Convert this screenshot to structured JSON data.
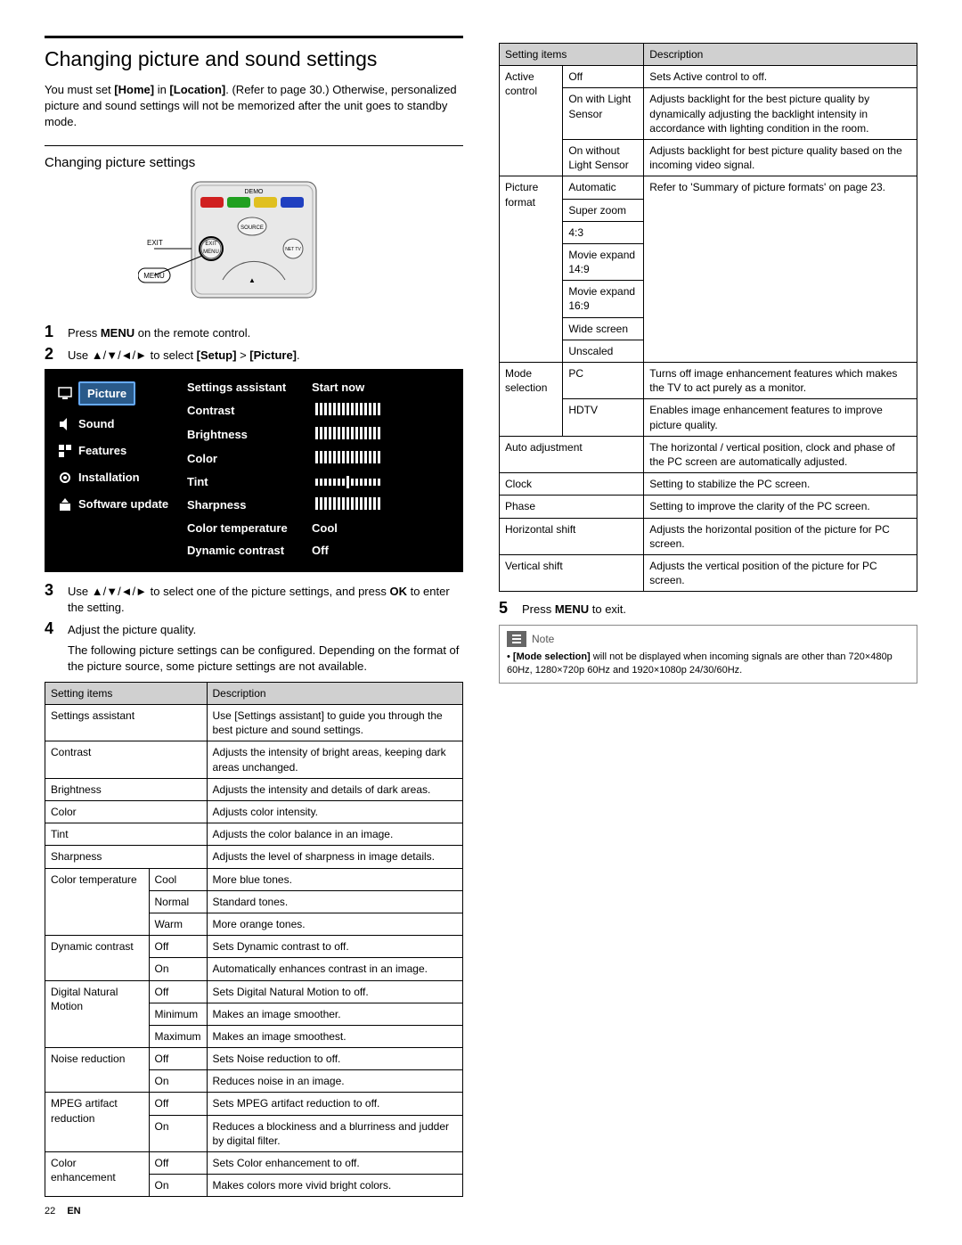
{
  "header": {
    "title": "Changing picture and sound settings",
    "intro_1": "You must set ",
    "intro_home": "[Home]",
    "intro_2": " in ",
    "intro_location": "[Location]",
    "intro_3": ". (Refer to page 30.) Otherwise, personalized picture and sound settings will not be memorized after the unit goes to standby mode.",
    "subhead": "Changing picture settings"
  },
  "remote": {
    "demo": "DEMO",
    "exit": "EXIT",
    "menu": "MENU",
    "source": "SOURCE",
    "nettv": "NET TV",
    "colors": {
      "red": "#d02020",
      "green": "#20a020",
      "yellow": "#e0c020",
      "blue": "#2040c0"
    }
  },
  "steps": {
    "s1_a": "Press ",
    "s1_b": "MENU",
    "s1_c": " on the remote control.",
    "s2_a": "Use ▲/▼/◄/► to select ",
    "s2_b": "[Setup]",
    "s2_c": " > ",
    "s2_d": "[Picture]",
    "s2_e": ".",
    "s3_a": "Use ▲/▼/◄/► to select one of the picture settings, and press ",
    "s3_b": "OK",
    "s3_c": " to enter the setting.",
    "s4": "Adjust the picture quality.",
    "s4_sub": "The following picture settings can be configured. Depending on the format of the picture source, some picture settings are not available.",
    "s5_a": "Press ",
    "s5_b": "MENU",
    "s5_c": " to exit."
  },
  "osd": {
    "left": [
      "Picture",
      "Sound",
      "Features",
      "Installation",
      "Software update"
    ],
    "rows": [
      {
        "label": "Settings assistant",
        "value": "Start now"
      },
      {
        "label": "Contrast",
        "value": "TICKS_FULL"
      },
      {
        "label": "Brightness",
        "value": "TICKS_FULL"
      },
      {
        "label": "Color",
        "value": "TICKS_FULL"
      },
      {
        "label": "Tint",
        "value": "TICKS_CENTER"
      },
      {
        "label": "Sharpness",
        "value": "TICKS_FULL"
      },
      {
        "label": "Color temperature",
        "value": "Cool"
      },
      {
        "label": "Dynamic contrast",
        "value": "Off"
      }
    ]
  },
  "table1": {
    "head": [
      "Setting items",
      "Description"
    ],
    "rows": [
      {
        "c1": "Settings assistant",
        "span": 2,
        "desc": "Use [Settings assistant] to guide you through the best picture and sound settings."
      },
      {
        "c1": "Contrast",
        "span": 2,
        "desc": "Adjusts the intensity of bright areas, keeping dark areas unchanged."
      },
      {
        "c1": "Brightness",
        "span": 2,
        "desc": "Adjusts the intensity and details of dark areas."
      },
      {
        "c1": "Color",
        "span": 2,
        "desc": "Adjusts color intensity."
      },
      {
        "c1": "Tint",
        "span": 2,
        "desc": "Adjusts the color balance in an image."
      },
      {
        "c1": "Sharpness",
        "span": 2,
        "desc": "Adjusts the level of sharpness in image details."
      },
      {
        "c1": "Color temperature",
        "rowspan": 3,
        "c2": "Cool",
        "desc": "More blue tones."
      },
      {
        "c2": "Normal",
        "desc": "Standard tones."
      },
      {
        "c2": "Warm",
        "desc": "More orange tones."
      },
      {
        "c1": "Dynamic contrast",
        "rowspan": 2,
        "c2": "Off",
        "desc": "Sets Dynamic contrast to off."
      },
      {
        "c2": "On",
        "desc": "Automatically enhances contrast in an image."
      },
      {
        "c1": "Digital Natural Motion",
        "rowspan": 3,
        "c2": "Off",
        "desc": "Sets Digital Natural Motion to off."
      },
      {
        "c2": "Minimum",
        "desc": "Makes an image smoother."
      },
      {
        "c2": "Maximum",
        "desc": "Makes an image smoothest."
      },
      {
        "c1": "Noise reduction",
        "rowspan": 2,
        "c2": "Off",
        "desc": "Sets Noise reduction to off."
      },
      {
        "c2": "On",
        "desc": "Reduces noise in an image."
      },
      {
        "c1": "MPEG artifact reduction",
        "rowspan": 2,
        "c2": "Off",
        "desc": "Sets MPEG artifact reduction to off."
      },
      {
        "c2": "On",
        "desc": "Reduces a blockiness and a blurriness and judder by digital filter."
      },
      {
        "c1": "Color enhancement",
        "rowspan": 2,
        "c2": "Off",
        "desc": "Sets Color enhancement to off."
      },
      {
        "c2": "On",
        "desc": "Makes colors more vivid bright colors."
      }
    ]
  },
  "table2": {
    "head": [
      "Setting items",
      "Description"
    ],
    "rows": [
      {
        "c1": "Active control",
        "rowspan": 3,
        "c2": "Off",
        "desc": "Sets Active control to off."
      },
      {
        "c2": "On with Light Sensor",
        "desc": "Adjusts backlight for the best picture quality by dynamically adjusting the backlight intensity in accordance with lighting condition in the room."
      },
      {
        "c2": "On without Light Sensor",
        "desc": "Adjusts backlight for best picture quality based on the incoming video signal."
      },
      {
        "c1": "Picture format",
        "rowspan": 8,
        "c2": "Automatic",
        "desc_rowspan": 8,
        "desc": "Refer to 'Summary of picture formats' on page 23."
      },
      {
        "c2": "Super zoom"
      },
      {
        "c2": "4:3"
      },
      {
        "c2": "Movie expand 14:9"
      },
      {
        "c2": "Movie expand 16:9"
      },
      {
        "c2": "Wide screen"
      },
      {
        "c2": "Unscaled"
      },
      {
        "skip": true
      },
      {
        "c1": "Mode selection",
        "rowspan": 2,
        "c2": "PC",
        "desc": "Turns off image enhancement features which makes the TV to act purely as a monitor."
      },
      {
        "c2": "HDTV",
        "desc": "Enables image enhancement features to improve picture quality."
      },
      {
        "c1": "Auto adjustment",
        "span": 2,
        "desc": "The horizontal / vertical position, clock and phase of the PC screen are automatically adjusted."
      },
      {
        "c1": "Clock",
        "span": 2,
        "desc": "Setting to stabilize the PC screen."
      },
      {
        "c1": "Phase",
        "span": 2,
        "desc": "Setting to improve the clarity of the PC screen."
      },
      {
        "c1": "Horizontal shift",
        "span": 2,
        "desc": "Adjusts the horizontal position of the picture for PC screen."
      },
      {
        "c1": "Vertical shift",
        "span": 2,
        "desc": "Adjusts the vertical position of the picture for PC screen."
      }
    ]
  },
  "note": {
    "title": "Note",
    "bullet_a": "[Mode selection]",
    "bullet_b": " will not be displayed when incoming signals are other than 720×480p 60Hz, 1280×720p 60Hz and 1920×1080p 24/30/60Hz."
  },
  "footer": {
    "page": "22",
    "lang": "EN"
  }
}
